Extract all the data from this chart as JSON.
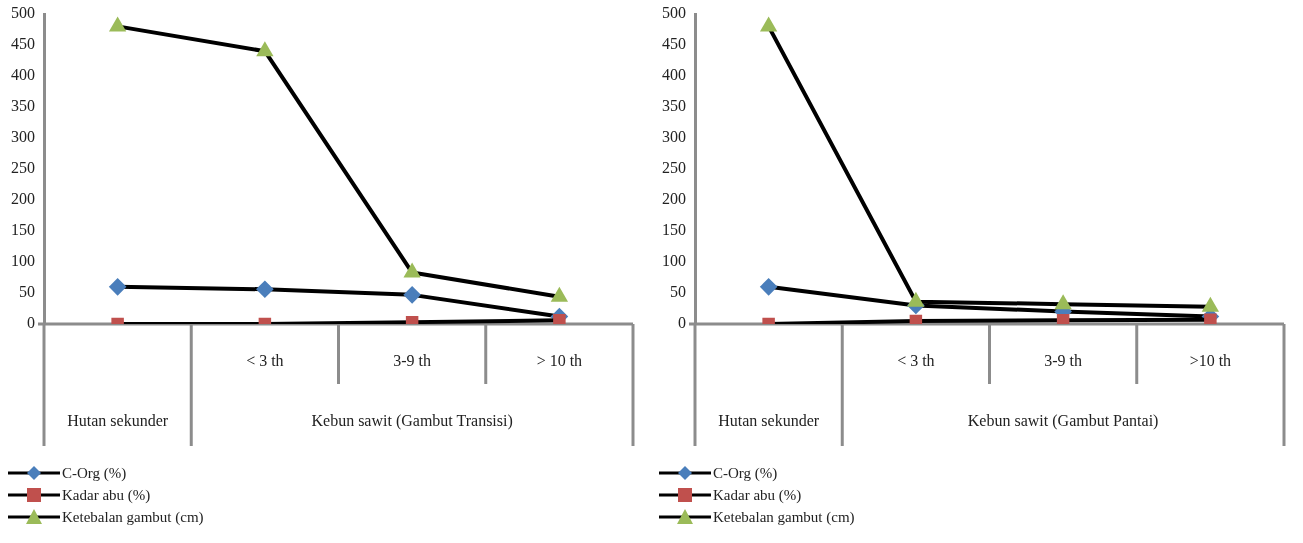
{
  "chart_data": [
    {
      "type": "line",
      "annotations": [
        "Hutan sekunder",
        "Kebun sawit (Gambut Transisi)"
      ],
      "categories": [
        null,
        "< 3 th",
        "3-9 th",
        "> 10 th"
      ],
      "ylim": [
        0,
        500
      ],
      "yticks": [
        0,
        50,
        100,
        150,
        200,
        250,
        300,
        350,
        400,
        450,
        500
      ],
      "grid": false,
      "legend": "bottom left",
      "series": [
        {
          "name": "C-Org (%)",
          "color": "#4a7ebb",
          "marker": "diamond",
          "values": [
            60,
            56,
            47,
            12
          ]
        },
        {
          "name": "Kadar abu (%)",
          "color": "#c0504d",
          "marker": "square",
          "values": [
            0,
            0,
            3,
            6
          ]
        },
        {
          "name": "Ketebalan gambut (cm)",
          "color": "#9bbb59",
          "marker": "triangle",
          "values": [
            480,
            440,
            83,
            44
          ]
        }
      ]
    },
    {
      "type": "line",
      "annotations": [
        "Hutan sekunder",
        "Kebun sawit (Gambut Pantai)"
      ],
      "categories": [
        null,
        "< 3 th",
        "3-9 th",
        ">10 th"
      ],
      "ylim": [
        0,
        500
      ],
      "yticks": [
        0,
        50,
        100,
        150,
        200,
        250,
        300,
        350,
        400,
        450,
        500
      ],
      "grid": false,
      "legend": "bottom left",
      "series": [
        {
          "name": "C-Org (%)",
          "color": "#4a7ebb",
          "marker": "diamond",
          "values": [
            60,
            30,
            20,
            12
          ]
        },
        {
          "name": "Kadar abu (%)",
          "color": "#c0504d",
          "marker": "square",
          "values": [
            0,
            5,
            6,
            7
          ]
        },
        {
          "name": "Ketebalan gambut (cm)",
          "color": "#9bbb59",
          "marker": "triangle",
          "values": [
            480,
            36,
            32,
            28
          ]
        }
      ]
    }
  ]
}
